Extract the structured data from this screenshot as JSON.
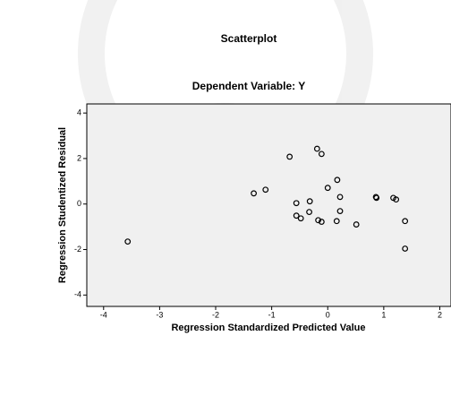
{
  "chart_data": {
    "type": "scatter",
    "title": "Scatterplot",
    "subtitle": "Dependent Variable: Y",
    "x_label": "Regression Standardized Predicted Value",
    "y_label": "Regression Studentized Residual",
    "color": "#000000",
    "x": [
      -3.57,
      -1.32,
      -1.11,
      -0.68,
      -0.19,
      -0.11,
      -0.56,
      -0.32,
      -0.33,
      -0.56,
      -0.48,
      -0.17,
      -0.11,
      0,
      0.17,
      0.22,
      0.22,
      0.16,
      0.51,
      0.86,
      0.87,
      1.17,
      1.22,
      1.38,
      1.38
    ],
    "y": [
      -1.65,
      0.47,
      0.63,
      2.08,
      2.43,
      2.2,
      0.04,
      0.12,
      -0.35,
      -0.51,
      -0.63,
      -0.71,
      -0.78,
      0.71,
      1.06,
      0.31,
      -0.31,
      -0.75,
      -0.9,
      0.31,
      0.27,
      0.27,
      0.2,
      -0.75,
      -1.96
    ],
    "xlim": [
      -4.3,
      2.2
    ],
    "ylim": [
      -4.5,
      4.4
    ],
    "xticks": [
      -4,
      -3,
      -2,
      -1,
      0,
      1,
      2
    ],
    "yticks": [
      -4,
      -2,
      0,
      2,
      4
    ]
  }
}
